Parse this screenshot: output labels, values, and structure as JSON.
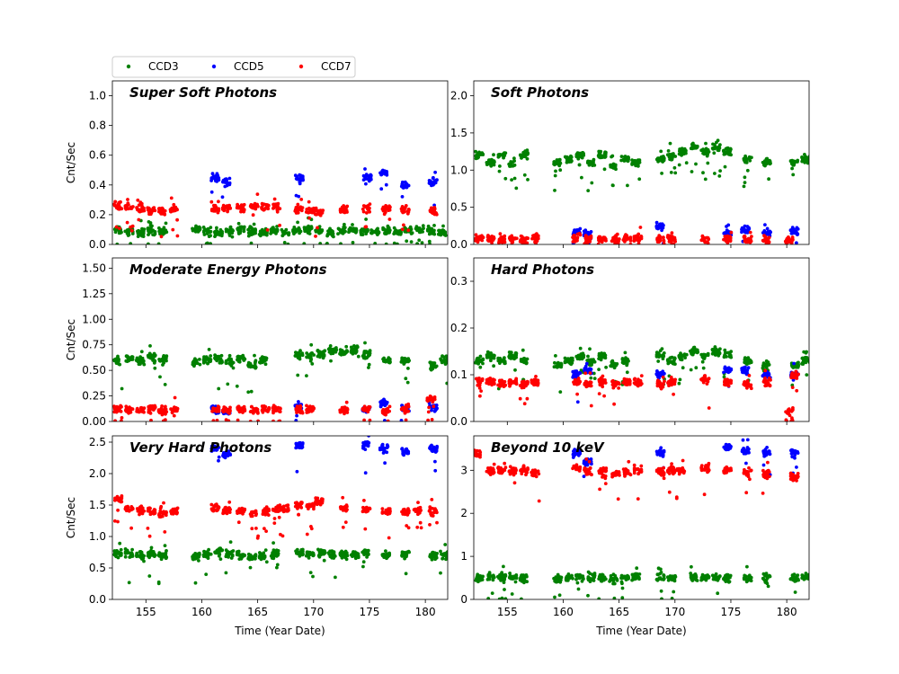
{
  "legend": {
    "placement": "top-left, above plots",
    "entries": [
      {
        "name": "CCD3",
        "color": "#008000"
      },
      {
        "name": "CCD5",
        "color": "#0000ff"
      },
      {
        "name": "CCD7",
        "color": "#ff0000"
      }
    ]
  },
  "chart_data": [
    {
      "type": "scatter",
      "title": "Super Soft Photons",
      "xlabel": "",
      "ylabel": "Cnt/Sec",
      "xlim": [
        152,
        182
      ],
      "ylim": [
        0,
        1.1
      ],
      "xticks": [],
      "yticks": [
        0.0,
        0.2,
        0.4,
        0.6,
        0.8,
        1.0
      ],
      "ytick_labels": [
        "0.0",
        "0.2",
        "0.4",
        "0.6",
        "0.8",
        "1.0"
      ],
      "series": [
        {
          "name": "CCD3",
          "color": "#008000",
          "x": [
            152.5,
            153.5,
            154.5,
            155.5,
            156.5,
            159.5,
            160.5,
            161.5,
            162.5,
            163.5,
            164.5,
            165.5,
            166.5,
            167.5,
            168.5,
            169.5,
            170.5,
            171.5,
            172.5,
            173.5,
            174.5,
            175.5,
            176.5,
            177.5,
            178.5,
            179.5,
            180.5,
            181.5
          ],
          "y": [
            0.1,
            0.09,
            0.08,
            0.09,
            0.09,
            0.1,
            0.09,
            0.08,
            0.09,
            0.1,
            0.09,
            0.08,
            0.09,
            0.08,
            0.09,
            0.1,
            0.09,
            0.08,
            0.09,
            0.1,
            0.09,
            0.08,
            0.09,
            0.08,
            0.09,
            0.1,
            0.09,
            0.08
          ]
        },
        {
          "name": "CCD5",
          "color": "#0000ff",
          "x": [
            161.2,
            162.2,
            168.7,
            174.8,
            176.3,
            178.2,
            180.7
          ],
          "y": [
            0.45,
            0.42,
            0.44,
            0.45,
            0.48,
            0.4,
            0.42
          ]
        },
        {
          "name": "CCD7",
          "color": "#ff0000",
          "x": [
            152.5,
            153.5,
            154.5,
            155.5,
            156.5,
            157.5,
            161.2,
            162.2,
            163.5,
            164.7,
            165.7,
            166.7,
            168.7,
            169.7,
            170.5,
            172.7,
            174.7,
            176.5,
            178.2,
            180.7
          ],
          "y": [
            0.26,
            0.25,
            0.24,
            0.23,
            0.22,
            0.23,
            0.24,
            0.25,
            0.24,
            0.26,
            0.25,
            0.25,
            0.24,
            0.23,
            0.22,
            0.24,
            0.24,
            0.24,
            0.23,
            0.22
          ]
        }
      ]
    },
    {
      "type": "scatter",
      "title": "Soft Photons",
      "xlabel": "",
      "ylabel": "",
      "xlim": [
        152,
        182
      ],
      "ylim": [
        0,
        2.2
      ],
      "xticks": [],
      "yticks": [
        0.0,
        0.5,
        1.0,
        1.5,
        2.0
      ],
      "ytick_labels": [
        "0.0",
        "0.5",
        "1.0",
        "1.5",
        "2.0"
      ],
      "series": [
        {
          "name": "CCD3",
          "color": "#008000",
          "x": [
            152.5,
            153.5,
            154.5,
            155.5,
            156.5,
            159.5,
            160.5,
            161.5,
            162.5,
            163.5,
            164.5,
            165.5,
            166.5,
            168.7,
            169.7,
            170.7,
            171.7,
            172.7,
            173.7,
            174.7,
            176.5,
            178.2,
            180.7,
            181.7
          ],
          "y": [
            1.2,
            1.1,
            1.2,
            1.1,
            1.2,
            1.1,
            1.15,
            1.2,
            1.1,
            1.2,
            1.05,
            1.15,
            1.1,
            1.15,
            1.2,
            1.25,
            1.3,
            1.25,
            1.3,
            1.25,
            1.15,
            1.1,
            1.1,
            1.15
          ]
        },
        {
          "name": "CCD5",
          "color": "#0000ff",
          "x": [
            161.2,
            162.2,
            168.7,
            174.7,
            176.3,
            178.2,
            180.7
          ],
          "y": [
            0.15,
            0.14,
            0.25,
            0.15,
            0.2,
            0.15,
            0.18
          ]
        },
        {
          "name": "CCD7",
          "color": "#ff0000",
          "x": [
            152.5,
            153.5,
            154.5,
            155.5,
            156.5,
            157.5,
            161.2,
            162.2,
            163.5,
            164.7,
            165.7,
            166.7,
            168.7,
            169.7,
            172.7,
            174.7,
            176.5,
            178.2,
            180.2
          ],
          "y": [
            0.08,
            0.08,
            0.07,
            0.08,
            0.07,
            0.08,
            0.08,
            0.07,
            0.08,
            0.07,
            0.08,
            0.08,
            0.07,
            0.08,
            0.07,
            0.08,
            0.07,
            0.07,
            0.05
          ]
        }
      ]
    },
    {
      "type": "scatter",
      "title": "Moderate Energy Photons",
      "xlabel": "",
      "ylabel": "Cnt/Sec",
      "xlim": [
        152,
        182
      ],
      "ylim": [
        0,
        1.6
      ],
      "xticks": [],
      "yticks": [
        0.0,
        0.25,
        0.5,
        0.75,
        1.0,
        1.25,
        1.5
      ],
      "ytick_labels": [
        "0.00",
        "0.25",
        "0.50",
        "0.75",
        "1.00",
        "1.25",
        "1.50"
      ],
      "series": [
        {
          "name": "CCD3",
          "color": "#008000",
          "x": [
            152.5,
            153.5,
            154.5,
            155.5,
            156.5,
            159.5,
            160.5,
            161.5,
            162.5,
            163.5,
            164.5,
            165.5,
            168.7,
            169.7,
            170.7,
            171.7,
            172.7,
            173.7,
            174.7,
            176.5,
            178.2,
            180.7,
            181.7
          ],
          "y": [
            0.6,
            0.62,
            0.6,
            0.63,
            0.6,
            0.58,
            0.6,
            0.6,
            0.58,
            0.62,
            0.55,
            0.6,
            0.65,
            0.63,
            0.66,
            0.7,
            0.68,
            0.7,
            0.66,
            0.6,
            0.6,
            0.55,
            0.6
          ]
        },
        {
          "name": "CCD5",
          "color": "#0000ff",
          "x": [
            161.2,
            162.2,
            168.7,
            174.7,
            176.3,
            178.2,
            180.7
          ],
          "y": [
            0.12,
            0.1,
            0.15,
            0.12,
            0.18,
            0.12,
            0.15
          ]
        },
        {
          "name": "CCD7",
          "color": "#ff0000",
          "x": [
            152.5,
            153.5,
            154.5,
            155.5,
            156.5,
            157.5,
            161.2,
            162.2,
            163.5,
            164.7,
            165.7,
            166.7,
            168.7,
            169.7,
            172.7,
            174.7,
            176.5,
            178.2,
            180.5
          ],
          "y": [
            0.12,
            0.12,
            0.11,
            0.12,
            0.11,
            0.12,
            0.12,
            0.11,
            0.12,
            0.11,
            0.12,
            0.12,
            0.11,
            0.12,
            0.11,
            0.12,
            0.11,
            0.12,
            0.22
          ]
        }
      ]
    },
    {
      "type": "scatter",
      "title": "Hard Photons",
      "xlabel": "",
      "ylabel": "",
      "xlim": [
        152,
        182
      ],
      "ylim": [
        0,
        0.35
      ],
      "xticks": [],
      "yticks": [
        0.0,
        0.1,
        0.2,
        0.3
      ],
      "ytick_labels": [
        "0.0",
        "0.1",
        "0.2",
        "0.3"
      ],
      "series": [
        {
          "name": "CCD3",
          "color": "#008000",
          "x": [
            152.5,
            153.5,
            154.5,
            155.5,
            156.5,
            159.5,
            160.5,
            161.5,
            162.5,
            163.5,
            164.5,
            165.5,
            168.7,
            169.7,
            170.7,
            171.7,
            172.7,
            173.7,
            174.7,
            176.5,
            178.2,
            180.7,
            181.7
          ],
          "y": [
            0.13,
            0.14,
            0.13,
            0.14,
            0.13,
            0.12,
            0.13,
            0.14,
            0.13,
            0.14,
            0.12,
            0.13,
            0.14,
            0.13,
            0.14,
            0.15,
            0.14,
            0.15,
            0.14,
            0.13,
            0.12,
            0.12,
            0.13
          ]
        },
        {
          "name": "CCD5",
          "color": "#0000ff",
          "x": [
            161.2,
            162.2,
            168.7,
            174.7,
            176.3,
            178.2,
            180.7
          ],
          "y": [
            0.1,
            0.11,
            0.1,
            0.11,
            0.11,
            0.1,
            0.1
          ]
        },
        {
          "name": "CCD7",
          "color": "#ff0000",
          "x": [
            152.5,
            153.5,
            154.5,
            155.5,
            156.5,
            157.5,
            161.2,
            162.2,
            163.5,
            164.7,
            165.7,
            166.7,
            168.7,
            169.7,
            172.7,
            174.7,
            176.5,
            178.2,
            180.2,
            180.7
          ],
          "y": [
            0.085,
            0.085,
            0.08,
            0.085,
            0.08,
            0.085,
            0.085,
            0.08,
            0.085,
            0.08,
            0.085,
            0.085,
            0.08,
            0.085,
            0.09,
            0.085,
            0.08,
            0.085,
            0.02,
            0.1
          ]
        }
      ]
    },
    {
      "type": "scatter",
      "title": "Very Hard Photons",
      "xlabel": "Time (Year Date)",
      "ylabel": "Cnt/Sec",
      "xlim": [
        152,
        182
      ],
      "ylim": [
        0,
        2.6
      ],
      "xticks": [
        155,
        160,
        165,
        170,
        175,
        180
      ],
      "xtick_labels": [
        "155",
        "160",
        "165",
        "170",
        "175",
        "180"
      ],
      "yticks": [
        0.0,
        0.5,
        1.0,
        1.5,
        2.0,
        2.5
      ],
      "ytick_labels": [
        "0.0",
        "0.5",
        "1.0",
        "1.5",
        "2.0",
        "2.5"
      ],
      "series": [
        {
          "name": "CCD3",
          "color": "#008000",
          "x": [
            152.5,
            153.5,
            154.5,
            155.5,
            156.5,
            159.5,
            160.5,
            161.5,
            162.5,
            163.5,
            164.5,
            165.5,
            166.5,
            168.7,
            169.7,
            170.7,
            171.7,
            172.7,
            173.7,
            174.7,
            176.5,
            178.2,
            180.7,
            181.7
          ],
          "y": [
            0.72,
            0.72,
            0.7,
            0.72,
            0.7,
            0.68,
            0.72,
            0.75,
            0.72,
            0.7,
            0.68,
            0.7,
            0.72,
            0.75,
            0.72,
            0.75,
            0.72,
            0.7,
            0.72,
            0.75,
            0.7,
            0.72,
            0.7,
            0.72
          ]
        },
        {
          "name": "CCD5",
          "color": "#0000ff",
          "x": [
            161.2,
            162.2,
            168.7,
            174.7,
            176.3,
            178.2,
            180.7
          ],
          "y": [
            2.4,
            2.3,
            2.45,
            2.45,
            2.4,
            2.35,
            2.4
          ]
        },
        {
          "name": "CCD7",
          "color": "#ff0000",
          "x": [
            152.5,
            153.5,
            154.5,
            155.5,
            156.5,
            157.5,
            161.2,
            162.2,
            163.5,
            164.7,
            165.7,
            166.7,
            167.5,
            168.7,
            169.7,
            170.5,
            172.7,
            174.7,
            176.5,
            178.2,
            179.3,
            180.7
          ],
          "y": [
            1.6,
            1.45,
            1.42,
            1.4,
            1.38,
            1.4,
            1.45,
            1.42,
            1.4,
            1.38,
            1.4,
            1.42,
            1.45,
            1.5,
            1.48,
            1.55,
            1.45,
            1.42,
            1.4,
            1.4,
            1.42,
            1.4
          ]
        }
      ]
    },
    {
      "type": "scatter",
      "title": "Beyond 10 keV",
      "xlabel": "Time (Year Date)",
      "ylabel": "",
      "xlim": [
        152,
        182
      ],
      "ylim": [
        0,
        3.8
      ],
      "xticks": [
        155,
        160,
        165,
        170,
        175,
        180
      ],
      "xtick_labels": [
        "155",
        "160",
        "165",
        "170",
        "175",
        "180"
      ],
      "yticks": [
        0,
        1,
        2,
        3
      ],
      "ytick_labels": [
        "0",
        "1",
        "2",
        "3"
      ],
      "series": [
        {
          "name": "CCD3",
          "color": "#008000",
          "x": [
            152.5,
            153.5,
            154.5,
            155.5,
            156.5,
            159.5,
            160.5,
            161.5,
            162.5,
            163.5,
            164.5,
            165.5,
            166.5,
            168.7,
            169.7,
            171.7,
            172.7,
            173.7,
            174.7,
            176.5,
            178.2,
            180.7,
            181.7
          ],
          "y": [
            0.5,
            0.52,
            0.5,
            0.52,
            0.5,
            0.48,
            0.5,
            0.52,
            0.5,
            0.5,
            0.48,
            0.5,
            0.52,
            0.52,
            0.5,
            0.52,
            0.5,
            0.52,
            0.5,
            0.5,
            0.52,
            0.5,
            0.52
          ]
        },
        {
          "name": "CCD5",
          "color": "#0000ff",
          "x": [
            161.2,
            162.2,
            168.7,
            174.7,
            176.3,
            178.2,
            180.7
          ],
          "y": [
            3.4,
            3.2,
            3.4,
            3.55,
            3.45,
            3.4,
            3.4
          ]
        },
        {
          "name": "CCD7",
          "color": "#ff0000",
          "x": [
            152.3,
            153.5,
            154.5,
            155.5,
            156.5,
            157.5,
            161.2,
            162.2,
            163.5,
            164.7,
            165.7,
            166.7,
            168.7,
            169.7,
            170.5,
            172.7,
            174.7,
            176.5,
            178.2,
            180.7
          ],
          "y": [
            3.4,
            3.0,
            3.0,
            3.0,
            3.0,
            2.95,
            3.05,
            3.0,
            2.95,
            2.9,
            2.95,
            3.0,
            2.95,
            3.0,
            3.0,
            3.05,
            3.0,
            2.95,
            2.9,
            2.85
          ]
        }
      ]
    }
  ]
}
